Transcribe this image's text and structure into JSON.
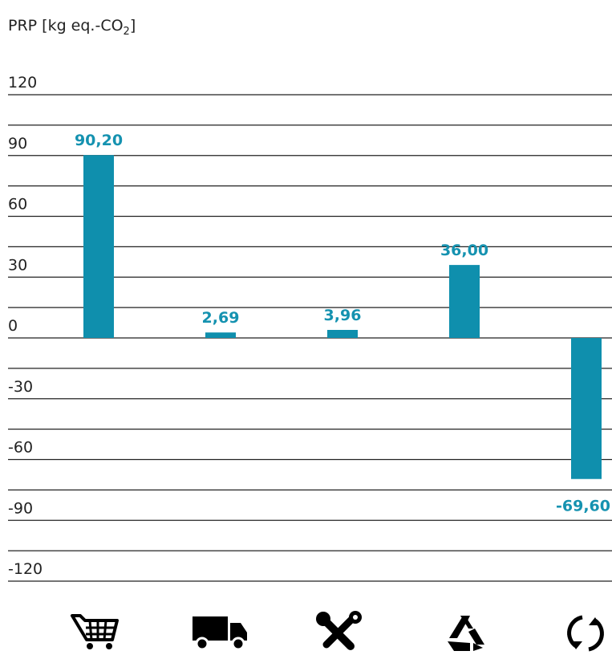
{
  "chart_data": {
    "type": "bar",
    "ylabel": "PRP [kg eq.-CO",
    "ylabel_subscript": "2",
    "ylabel_suffix": "]",
    "ylim": [
      -120,
      120
    ],
    "yticks": [
      120,
      90,
      60,
      30,
      0,
      -30,
      -60,
      -90,
      -120
    ],
    "ytick_labels": [
      "120",
      "90",
      "60",
      "30",
      "0",
      "-30",
      "-60",
      "-90",
      "-120"
    ],
    "grid": true,
    "categories": [
      "shopping-cart-icon",
      "truck-icon",
      "tools-icon",
      "recycle-icon",
      "cycle-icon"
    ],
    "values": [
      90.2,
      2.69,
      3.96,
      36.0,
      -69.6
    ],
    "value_labels": [
      "90,20",
      "2,69",
      "3,96",
      "36,00",
      "-69,60"
    ],
    "bar_color": "#0f8fad",
    "label_color": "#1592b0"
  }
}
